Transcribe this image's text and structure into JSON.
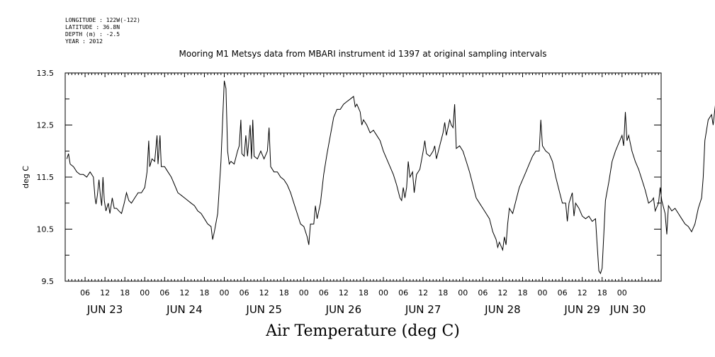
{
  "header": {
    "lines": [
      "LONGITUDE : 122W(-122)",
      "LATITUDE : 36.8N",
      "DEPTH (m) : -2.5",
      "YEAR : 2012"
    ]
  },
  "chart_data": {
    "type": "line",
    "title": "Mooring M1 Metsys data from MBARI instrument id 1397 at original sampling intervals",
    "xlabel": "Air Temperature (deg C)",
    "ylabel": "deg C",
    "ylim": [
      9.5,
      13.5
    ],
    "xlim_hours_since_jun22": [
      24.0,
      203.8
    ],
    "grid": false,
    "y_ticks": [
      "9.5",
      "10.5",
      "11.5",
      "12.5",
      "13.5"
    ],
    "x_hour_ticks": [
      "06",
      "12",
      "18",
      "00",
      "06",
      "12",
      "18",
      "00",
      "06",
      "12",
      "18",
      "00",
      "06",
      "12",
      "18",
      "00",
      "06",
      "12",
      "18",
      "00",
      "06",
      "12",
      "18",
      "00",
      "06",
      "12",
      "18",
      "00"
    ],
    "x_day_ticks": [
      "JUN 23",
      "JUN 24",
      "JUN 25",
      "JUN 26",
      "JUN 27",
      "JUN 28",
      "JUN 29",
      "JUN 30"
    ],
    "series": [
      {
        "points": [
          [
            24.5,
            11.85
          ],
          [
            25,
            11.95
          ],
          [
            25.5,
            11.75
          ],
          [
            26.5,
            11.7
          ],
          [
            27.5,
            11.6
          ],
          [
            28.5,
            11.55
          ],
          [
            29.5,
            11.55
          ],
          [
            30.5,
            11.5
          ],
          [
            31.5,
            11.6
          ],
          [
            32.5,
            11.5
          ],
          [
            33,
            11.1
          ],
          [
            33.3,
            10.98
          ],
          [
            33.7,
            11.15
          ],
          [
            34.2,
            11.45
          ],
          [
            34.6,
            11.15
          ],
          [
            35,
            10.95
          ],
          [
            35.4,
            11.5
          ],
          [
            35.8,
            11.05
          ],
          [
            36.3,
            10.85
          ],
          [
            37,
            11.0
          ],
          [
            37.5,
            10.8
          ],
          [
            38.2,
            11.1
          ],
          [
            38.8,
            10.9
          ],
          [
            39.5,
            10.9
          ],
          [
            40.2,
            10.85
          ],
          [
            41,
            10.8
          ],
          [
            41.8,
            11.0
          ],
          [
            42.5,
            11.2
          ],
          [
            43.2,
            11.05
          ],
          [
            44,
            11.0
          ],
          [
            45,
            11.1
          ],
          [
            46,
            11.2
          ],
          [
            47,
            11.2
          ],
          [
            48,
            11.3
          ],
          [
            48.7,
            11.6
          ],
          [
            49.2,
            12.2
          ],
          [
            49.5,
            11.7
          ],
          [
            50.2,
            11.85
          ],
          [
            51,
            11.8
          ],
          [
            51.7,
            12.3
          ],
          [
            52,
            11.75
          ],
          [
            52.6,
            12.3
          ],
          [
            53,
            11.7
          ],
          [
            54,
            11.7
          ],
          [
            55,
            11.6
          ],
          [
            56,
            11.5
          ],
          [
            57,
            11.35
          ],
          [
            58,
            11.2
          ],
          [
            59,
            11.15
          ],
          [
            60,
            11.1
          ],
          [
            61,
            11.05
          ],
          [
            62,
            11.0
          ],
          [
            63,
            10.95
          ],
          [
            64,
            10.85
          ],
          [
            65,
            10.8
          ],
          [
            66,
            10.7
          ],
          [
            67,
            10.6
          ],
          [
            68,
            10.55
          ],
          [
            68.5,
            10.3
          ],
          [
            69,
            10.45
          ],
          [
            70,
            10.8
          ],
          [
            71,
            11.8
          ],
          [
            71.5,
            12.6
          ],
          [
            72,
            13.35
          ],
          [
            72.5,
            13.2
          ],
          [
            73,
            12.0
          ],
          [
            73.5,
            11.75
          ],
          [
            74,
            11.8
          ],
          [
            75,
            11.75
          ],
          [
            76,
            12.0
          ],
          [
            76.5,
            12.1
          ],
          [
            77,
            12.6
          ],
          [
            77.3,
            11.95
          ],
          [
            78,
            11.9
          ],
          [
            78.5,
            12.3
          ],
          [
            79,
            11.9
          ],
          [
            79.8,
            12.5
          ],
          [
            80.2,
            11.85
          ],
          [
            80.6,
            12.6
          ],
          [
            81,
            11.9
          ],
          [
            82,
            11.85
          ],
          [
            83,
            12.0
          ],
          [
            84,
            11.85
          ],
          [
            85,
            12.0
          ],
          [
            85.5,
            12.45
          ],
          [
            86,
            11.7
          ],
          [
            87,
            11.6
          ],
          [
            88,
            11.6
          ],
          [
            89,
            11.5
          ],
          [
            90,
            11.45
          ],
          [
            91,
            11.35
          ],
          [
            92,
            11.2
          ],
          [
            93,
            11.0
          ],
          [
            94,
            10.8
          ],
          [
            95,
            10.6
          ],
          [
            96,
            10.55
          ],
          [
            97,
            10.35
          ],
          [
            97.5,
            10.2
          ],
          [
            98,
            10.6
          ],
          [
            99,
            10.6
          ],
          [
            99.5,
            10.95
          ],
          [
            100,
            10.7
          ],
          [
            101,
            11.0
          ],
          [
            102,
            11.55
          ],
          [
            103,
            11.95
          ],
          [
            104,
            12.3
          ],
          [
            105,
            12.65
          ],
          [
            106,
            12.8
          ],
          [
            107,
            12.8
          ],
          [
            108,
            12.9
          ],
          [
            109,
            12.95
          ],
          [
            110,
            13.0
          ],
          [
            111,
            13.05
          ],
          [
            111.5,
            12.85
          ],
          [
            112,
            12.9
          ],
          [
            113,
            12.75
          ],
          [
            113.5,
            12.5
          ],
          [
            114,
            12.6
          ],
          [
            115,
            12.5
          ],
          [
            116,
            12.35
          ],
          [
            117,
            12.4
          ],
          [
            118,
            12.3
          ],
          [
            119,
            12.2
          ],
          [
            120,
            12.0
          ],
          [
            121,
            11.85
          ],
          [
            122,
            11.7
          ],
          [
            123,
            11.55
          ],
          [
            124,
            11.35
          ],
          [
            125,
            11.1
          ],
          [
            125.5,
            11.05
          ],
          [
            126,
            11.3
          ],
          [
            126.5,
            11.1
          ],
          [
            127,
            11.3
          ],
          [
            127.5,
            11.8
          ],
          [
            128,
            11.5
          ],
          [
            128.8,
            11.6
          ],
          [
            129.3,
            11.2
          ],
          [
            130,
            11.55
          ],
          [
            131,
            11.65
          ],
          [
            132,
            12.0
          ],
          [
            132.5,
            12.2
          ],
          [
            133,
            11.95
          ],
          [
            134,
            11.9
          ],
          [
            135,
            12.0
          ],
          [
            135.5,
            12.1
          ],
          [
            136,
            11.85
          ],
          [
            137,
            12.1
          ],
          [
            138,
            12.35
          ],
          [
            138.5,
            12.55
          ],
          [
            139,
            12.3
          ],
          [
            140,
            12.6
          ],
          [
            140.5,
            12.5
          ],
          [
            141,
            12.45
          ],
          [
            141.5,
            12.9
          ],
          [
            142,
            12.05
          ],
          [
            143,
            12.1
          ],
          [
            144,
            12.0
          ],
          [
            145,
            11.8
          ],
          [
            146,
            11.6
          ],
          [
            147,
            11.35
          ],
          [
            148,
            11.1
          ],
          [
            149,
            11.0
          ],
          [
            150,
            10.9
          ],
          [
            151,
            10.8
          ],
          [
            152,
            10.7
          ],
          [
            153,
            10.45
          ],
          [
            154,
            10.3
          ],
          [
            154.5,
            10.15
          ],
          [
            155,
            10.25
          ],
          [
            156,
            10.1
          ],
          [
            156.5,
            10.35
          ],
          [
            157,
            10.2
          ],
          [
            157.5,
            10.6
          ],
          [
            158,
            10.9
          ],
          [
            159,
            10.8
          ],
          [
            160,
            11.05
          ],
          [
            161,
            11.3
          ],
          [
            162,
            11.45
          ],
          [
            163,
            11.6
          ],
          [
            164,
            11.75
          ],
          [
            165,
            11.9
          ],
          [
            166,
            12.0
          ],
          [
            167,
            12.0
          ],
          [
            167.5,
            12.6
          ],
          [
            168,
            12.1
          ],
          [
            169,
            12.0
          ],
          [
            170,
            11.95
          ],
          [
            171,
            11.8
          ],
          [
            172,
            11.5
          ],
          [
            173,
            11.25
          ],
          [
            174,
            11.0
          ],
          [
            175,
            11.0
          ],
          [
            175.5,
            10.65
          ],
          [
            176,
            11.0
          ],
          [
            177,
            11.2
          ],
          [
            177.5,
            10.75
          ],
          [
            178,
            11.0
          ],
          [
            179,
            10.9
          ],
          [
            180,
            10.75
          ],
          [
            181,
            10.7
          ],
          [
            182,
            10.75
          ],
          [
            183,
            10.65
          ],
          [
            184,
            10.7
          ],
          [
            184.5,
            10.2
          ],
          [
            185,
            9.7
          ],
          [
            185.5,
            9.65
          ],
          [
            186,
            9.75
          ],
          [
            186.5,
            10.4
          ],
          [
            187,
            11.05
          ],
          [
            188,
            11.4
          ],
          [
            189,
            11.8
          ],
          [
            190,
            12.0
          ],
          [
            191,
            12.15
          ],
          [
            192,
            12.3
          ],
          [
            192.5,
            12.1
          ],
          [
            193,
            12.75
          ],
          [
            193.5,
            12.2
          ],
          [
            194,
            12.3
          ],
          [
            195,
            12.0
          ],
          [
            196,
            11.8
          ],
          [
            197,
            11.65
          ],
          [
            198,
            11.45
          ],
          [
            199,
            11.25
          ],
          [
            200,
            11.0
          ],
          [
            201,
            11.05
          ],
          [
            201.5,
            11.1
          ],
          [
            202,
            10.85
          ],
          [
            203,
            11.0
          ],
          [
            203.5,
            11.3
          ],
          [
            204,
            11.05
          ],
          [
            205,
            10.8
          ],
          [
            205.5,
            10.4
          ],
          [
            206,
            10.95
          ],
          [
            207,
            10.85
          ],
          [
            208,
            10.9
          ],
          [
            209,
            10.8
          ],
          [
            210,
            10.7
          ],
          [
            211,
            10.6
          ],
          [
            212,
            10.55
          ],
          [
            213,
            10.45
          ],
          [
            214,
            10.6
          ],
          [
            215,
            10.9
          ],
          [
            216,
            11.1
          ],
          [
            216.5,
            11.5
          ],
          [
            217,
            12.2
          ],
          [
            218,
            12.6
          ],
          [
            219,
            12.7
          ],
          [
            219.5,
            12.5
          ],
          [
            220,
            12.8
          ],
          [
            221,
            13.35
          ],
          [
            221.5,
            12.9
          ],
          [
            222,
            13.0
          ],
          [
            223,
            12.8
          ],
          [
            223.5,
            12.6
          ],
          [
            224,
            12.75
          ],
          [
            224.5,
            12.4
          ],
          [
            225,
            12.6
          ],
          [
            225.5,
            12.3
          ],
          [
            226,
            12.4
          ],
          [
            227,
            12.35
          ]
        ]
      }
    ]
  }
}
